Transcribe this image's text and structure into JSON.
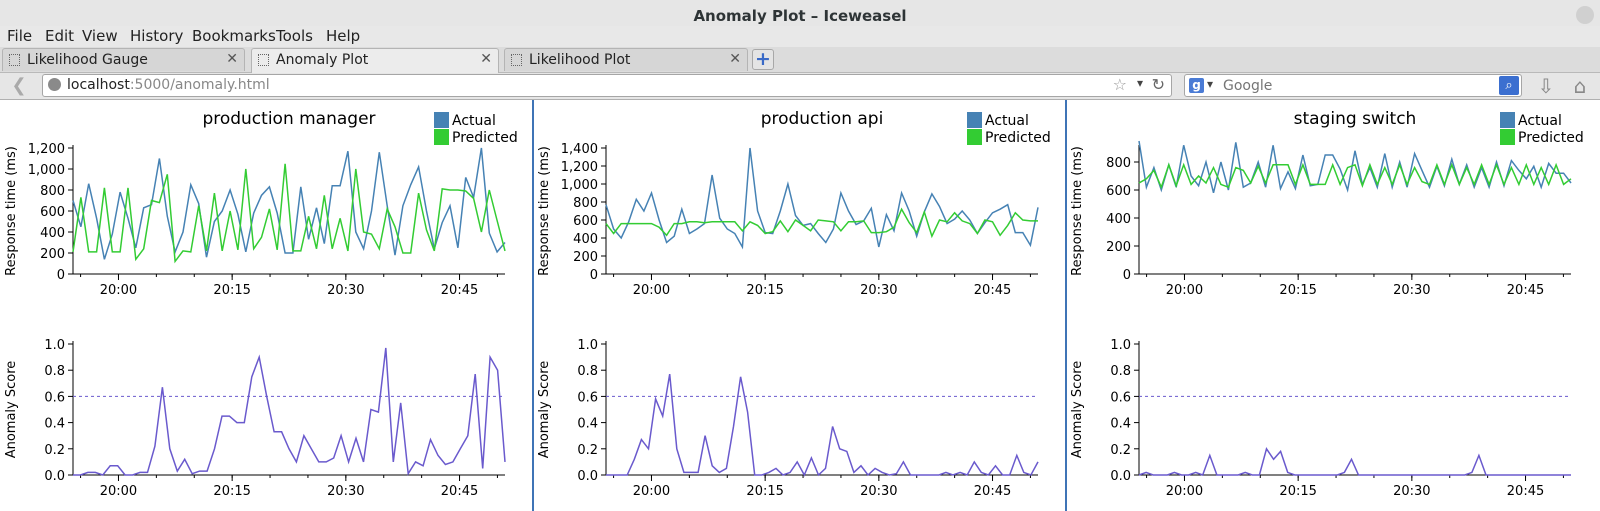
{
  "window": {
    "title": "Anomaly Plot – Iceweasel"
  },
  "menu": [
    {
      "label": "File"
    },
    {
      "label": "Edit"
    },
    {
      "label": "View"
    },
    {
      "label": "History"
    },
    {
      "label": "Bookmarks"
    },
    {
      "label": "Tools"
    },
    {
      "label": "Help"
    }
  ],
  "tabs": [
    {
      "label": "Likelihood Gauge",
      "active": false
    },
    {
      "label": "Anomaly Plot",
      "active": true
    },
    {
      "label": "Likelihood Plot",
      "active": false
    }
  ],
  "tab_close_glyph": "✕",
  "new_tab_glyph": "+",
  "urlbar": {
    "host": "localhost",
    "path": ":5000/anomaly.html"
  },
  "search": {
    "placeholder": "Google",
    "engine_letter": "g"
  },
  "icons": {
    "back": "back-arrow-icon",
    "site": "globe-icon",
    "bookmark": "star-icon",
    "reload": "reload-icon",
    "search": "magnifier-icon",
    "downloads": "download-arrow-icon",
    "home": "home-icon"
  },
  "colors": {
    "actual": "#4682b4",
    "predicted": "#33cc33",
    "anomaly": "#6a5acd",
    "threshold": "#6a5acd",
    "panel_separator": "#3f74b6"
  },
  "legend": {
    "actual": "Actual",
    "predicted": "Predicted"
  },
  "axis_labels": {
    "response": "Response time (ms)",
    "anomaly": "Anomaly Score"
  },
  "chart_data": [
    {
      "type": "line",
      "title": "production manager",
      "ylabel": "Response time (ms)",
      "x_ticks": [
        "20:00",
        "20:15",
        "20:30",
        "20:45"
      ],
      "x_range": [
        "19:54",
        "20:51"
      ],
      "ylim": [
        0,
        1200
      ],
      "y_ticks": [
        "0",
        "200",
        "400",
        "600",
        "800",
        "1,000",
        "1,200"
      ],
      "series": [
        {
          "name": "Actual",
          "values": [
            700,
            450,
            860,
            530,
            140,
            380,
            780,
            530,
            250,
            630,
            660,
            1100,
            550,
            210,
            400,
            850,
            670,
            160,
            500,
            600,
            800,
            570,
            210,
            580,
            750,
            830,
            580,
            200,
            200,
            830,
            330,
            630,
            290,
            840,
            840,
            1170,
            400,
            240,
            600,
            1160,
            650,
            180,
            650,
            850,
            1020,
            600,
            240,
            490,
            650,
            250,
            920,
            730,
            1200,
            390,
            210,
            300
          ]
        },
        {
          "name": "Predicted",
          "values": [
            210,
            730,
            210,
            210,
            820,
            210,
            210,
            820,
            140,
            240,
            700,
            680,
            950,
            120,
            220,
            210,
            650,
            220,
            770,
            220,
            600,
            230,
            1000,
            240,
            350,
            620,
            230,
            1050,
            220,
            220,
            550,
            240,
            750,
            240,
            530,
            220,
            1000,
            400,
            380,
            240,
            620,
            450,
            200,
            200,
            770,
            420,
            220,
            810,
            800,
            800,
            790,
            720,
            400,
            800,
            510,
            220
          ]
        }
      ]
    },
    {
      "type": "line",
      "title": "production manager",
      "ylabel": "Anomaly Score",
      "x_ticks": [
        "20:00",
        "20:15",
        "20:30",
        "20:45"
      ],
      "x_range": [
        "19:54",
        "20:51"
      ],
      "ylim": [
        0,
        1
      ],
      "y_ticks": [
        "0.0",
        "0.2",
        "0.4",
        "0.6",
        "0.8",
        "1.0"
      ],
      "threshold": 0.6,
      "series": [
        {
          "name": "Anomaly Score",
          "values": [
            0,
            0,
            0.02,
            0.02,
            0,
            0.07,
            0.07,
            0,
            0,
            0.02,
            0.02,
            0.22,
            0.67,
            0.2,
            0.03,
            0.12,
            0.01,
            0.03,
            0.03,
            0.2,
            0.45,
            0.45,
            0.4,
            0.4,
            0.75,
            0.9,
            0.6,
            0.33,
            0.33,
            0.2,
            0.1,
            0.3,
            0.2,
            0.1,
            0.1,
            0.13,
            0.3,
            0.1,
            0.28,
            0.1,
            0.5,
            0.48,
            0.97,
            0.1,
            0.55,
            0.01,
            0.1,
            0.07,
            0.27,
            0.15,
            0.08,
            0.1,
            0.2,
            0.3,
            0.77,
            0.05,
            0.9,
            0.8,
            0.1
          ]
        }
      ]
    },
    {
      "type": "line",
      "title": "production api",
      "ylabel": "Response time (ms)",
      "x_ticks": [
        "20:00",
        "20:15",
        "20:30",
        "20:45"
      ],
      "x_range": [
        "19:54",
        "20:51"
      ],
      "ylim": [
        0,
        1400
      ],
      "y_ticks": [
        "0",
        "200",
        "400",
        "600",
        "800",
        "1,000",
        "1,200",
        "1,400"
      ],
      "series": [
        {
          "name": "Actual",
          "values": [
            770,
            500,
            400,
            580,
            830,
            700,
            900,
            600,
            350,
            420,
            720,
            450,
            500,
            560,
            1100,
            620,
            500,
            450,
            300,
            1400,
            700,
            460,
            450,
            700,
            1000,
            650,
            540,
            560,
            450,
            350,
            500,
            900,
            700,
            550,
            590,
            730,
            300,
            660,
            480,
            900,
            700,
            420,
            690,
            890,
            750,
            560,
            610,
            700,
            600,
            450,
            570,
            680,
            720,
            770,
            460,
            460,
            320,
            740
          ]
        },
        {
          "name": "Predicted",
          "values": [
            560,
            450,
            560,
            560,
            560,
            560,
            560,
            520,
            430,
            560,
            560,
            580,
            580,
            570,
            580,
            580,
            580,
            580,
            480,
            580,
            540,
            450,
            470,
            590,
            470,
            600,
            540,
            480,
            600,
            590,
            580,
            480,
            580,
            580,
            590,
            460,
            460,
            470,
            520,
            720,
            570,
            460,
            690,
            420,
            600,
            580,
            680,
            590,
            560,
            450,
            600,
            580,
            430,
            540,
            680,
            600,
            590,
            590
          ]
        }
      ]
    },
    {
      "type": "line",
      "title": "production api",
      "ylabel": "Anomaly Score",
      "x_ticks": [
        "20:00",
        "20:15",
        "20:30",
        "20:45"
      ],
      "x_range": [
        "19:54",
        "20:51"
      ],
      "ylim": [
        0,
        1
      ],
      "y_ticks": [
        "0.0",
        "0.2",
        "0.4",
        "0.6",
        "0.8",
        "1.0"
      ],
      "threshold": 0.6,
      "series": [
        {
          "name": "Anomaly Score",
          "values": [
            0,
            0,
            0,
            0,
            0.12,
            0.27,
            0.2,
            0.58,
            0.45,
            0.77,
            0.2,
            0.02,
            0.02,
            0.02,
            0.3,
            0.07,
            0.02,
            0.05,
            0.37,
            0.75,
            0.48,
            0,
            0,
            0.02,
            0.05,
            0,
            0.02,
            0.1,
            0,
            0.13,
            0,
            0.05,
            0.37,
            0.2,
            0.18,
            0.02,
            0.07,
            0,
            0.05,
            0.02,
            0,
            0.01,
            0.1,
            0,
            0,
            0,
            0,
            0,
            0.02,
            0,
            0.02,
            0,
            0.1,
            0.02,
            0,
            0.07,
            0,
            0,
            0.15,
            0.02,
            0,
            0.1
          ]
        }
      ]
    },
    {
      "type": "line",
      "title": "staging switch",
      "ylabel": "Response time (ms)",
      "x_ticks": [
        "20:00",
        "20:15",
        "20:30",
        "20:45"
      ],
      "x_range": [
        "19:54",
        "20:51"
      ],
      "ylim": [
        0,
        900
      ],
      "y_ticks": [
        "0",
        "200",
        "400",
        "600",
        "800"
      ],
      "series": [
        {
          "name": "Actual",
          "values": [
            950,
            620,
            760,
            600,
            780,
            620,
            920,
            700,
            630,
            800,
            580,
            800,
            600,
            940,
            620,
            650,
            800,
            620,
            920,
            610,
            730,
            610,
            850,
            630,
            640,
            850,
            850,
            750,
            600,
            880,
            640,
            760,
            620,
            860,
            620,
            800,
            620,
            860,
            740,
            620,
            770,
            630,
            820,
            640,
            780,
            620,
            760,
            620,
            800,
            630,
            810,
            740,
            680,
            770,
            620,
            790,
            720,
            720,
            650
          ]
        },
        {
          "name": "Predicted",
          "values": [
            650,
            680,
            740,
            620,
            780,
            630,
            780,
            640,
            700,
            650,
            760,
            640,
            620,
            760,
            740,
            650,
            770,
            650,
            780,
            780,
            780,
            640,
            780,
            640,
            640,
            640,
            780,
            640,
            760,
            780,
            630,
            780,
            640,
            760,
            640,
            780,
            640,
            760,
            660,
            640,
            780,
            640,
            780,
            640,
            760,
            640,
            780,
            640,
            780,
            640,
            760,
            640,
            780,
            640,
            760,
            640,
            780,
            640,
            680
          ]
        }
      ]
    },
    {
      "type": "line",
      "title": "staging switch",
      "ylabel": "Anomaly Score",
      "x_ticks": [
        "20:00",
        "20:15",
        "20:30",
        "20:45"
      ],
      "x_range": [
        "19:54",
        "20:51"
      ],
      "ylim": [
        0,
        1
      ],
      "y_ticks": [
        "0.0",
        "0.2",
        "0.4",
        "0.6",
        "0.8",
        "1.0"
      ],
      "threshold": 0.6,
      "series": [
        {
          "name": "Anomaly Score",
          "values": [
            0,
            0.02,
            0,
            0,
            0,
            0.02,
            0,
            0,
            0.02,
            0,
            0.15,
            0,
            0,
            0,
            0,
            0.02,
            0,
            0,
            0.2,
            0.12,
            0.18,
            0.02,
            0,
            0,
            0,
            0,
            0,
            0,
            0,
            0.02,
            0.12,
            0,
            0,
            0,
            0,
            0,
            0,
            0,
            0,
            0,
            0,
            0,
            0,
            0,
            0,
            0,
            0,
            0.02,
            0.15,
            0,
            0,
            0,
            0,
            0,
            0,
            0,
            0,
            0,
            0,
            0,
            0,
            0
          ]
        }
      ]
    }
  ]
}
